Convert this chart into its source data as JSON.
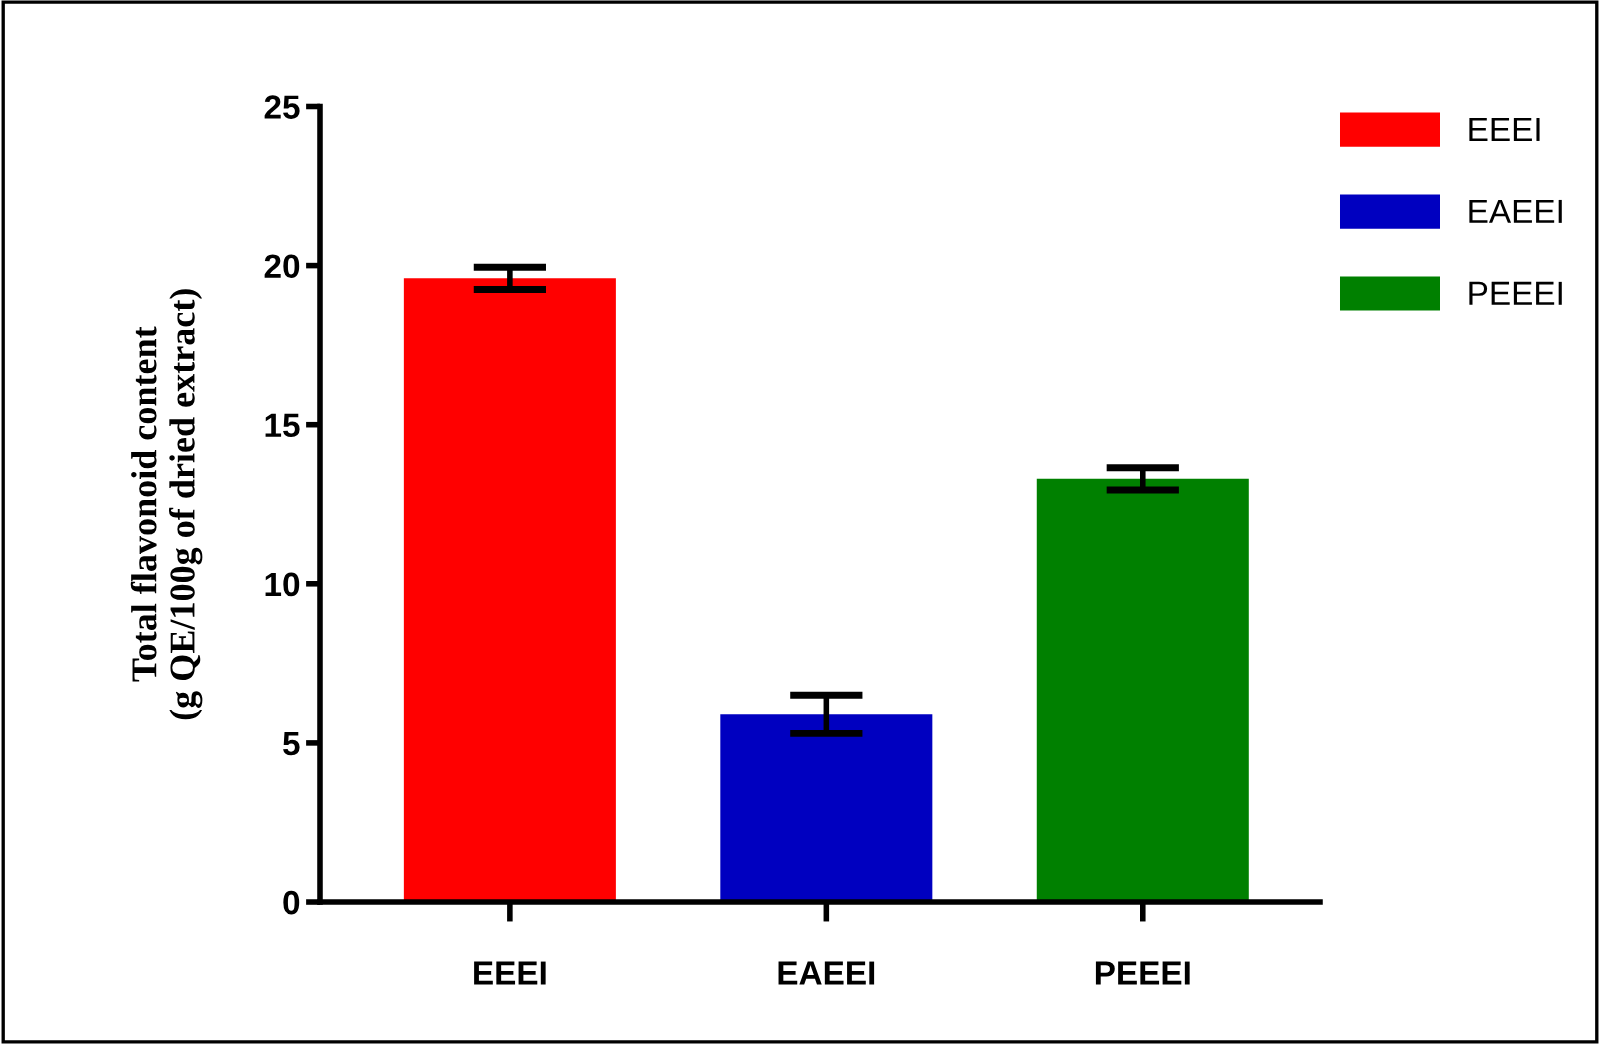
{
  "chart_data": {
    "type": "bar",
    "ylabel": "Total flavonoid content\n(g QE/100g of dried extract)",
    "categories": [
      "EEEI",
      "EAEEI",
      "PEEEI"
    ],
    "series": [
      {
        "name": "EEEI",
        "color": "#ff0000",
        "values": [
          19.6,
          null,
          null
        ],
        "errors": [
          0.35,
          null,
          null
        ]
      },
      {
        "name": "EAEEI",
        "color": "#0000c0",
        "values": [
          null,
          5.9,
          null
        ],
        "errors": [
          null,
          0.6,
          null
        ]
      },
      {
        "name": "PEEEI",
        "color": "#008000",
        "values": [
          null,
          null,
          13.3
        ],
        "errors": [
          null,
          null,
          0.35
        ]
      }
    ],
    "ylim": [
      0,
      25
    ],
    "yticks": [
      0,
      5,
      10,
      15,
      20,
      25
    ],
    "grid": false,
    "legend": "top right"
  }
}
